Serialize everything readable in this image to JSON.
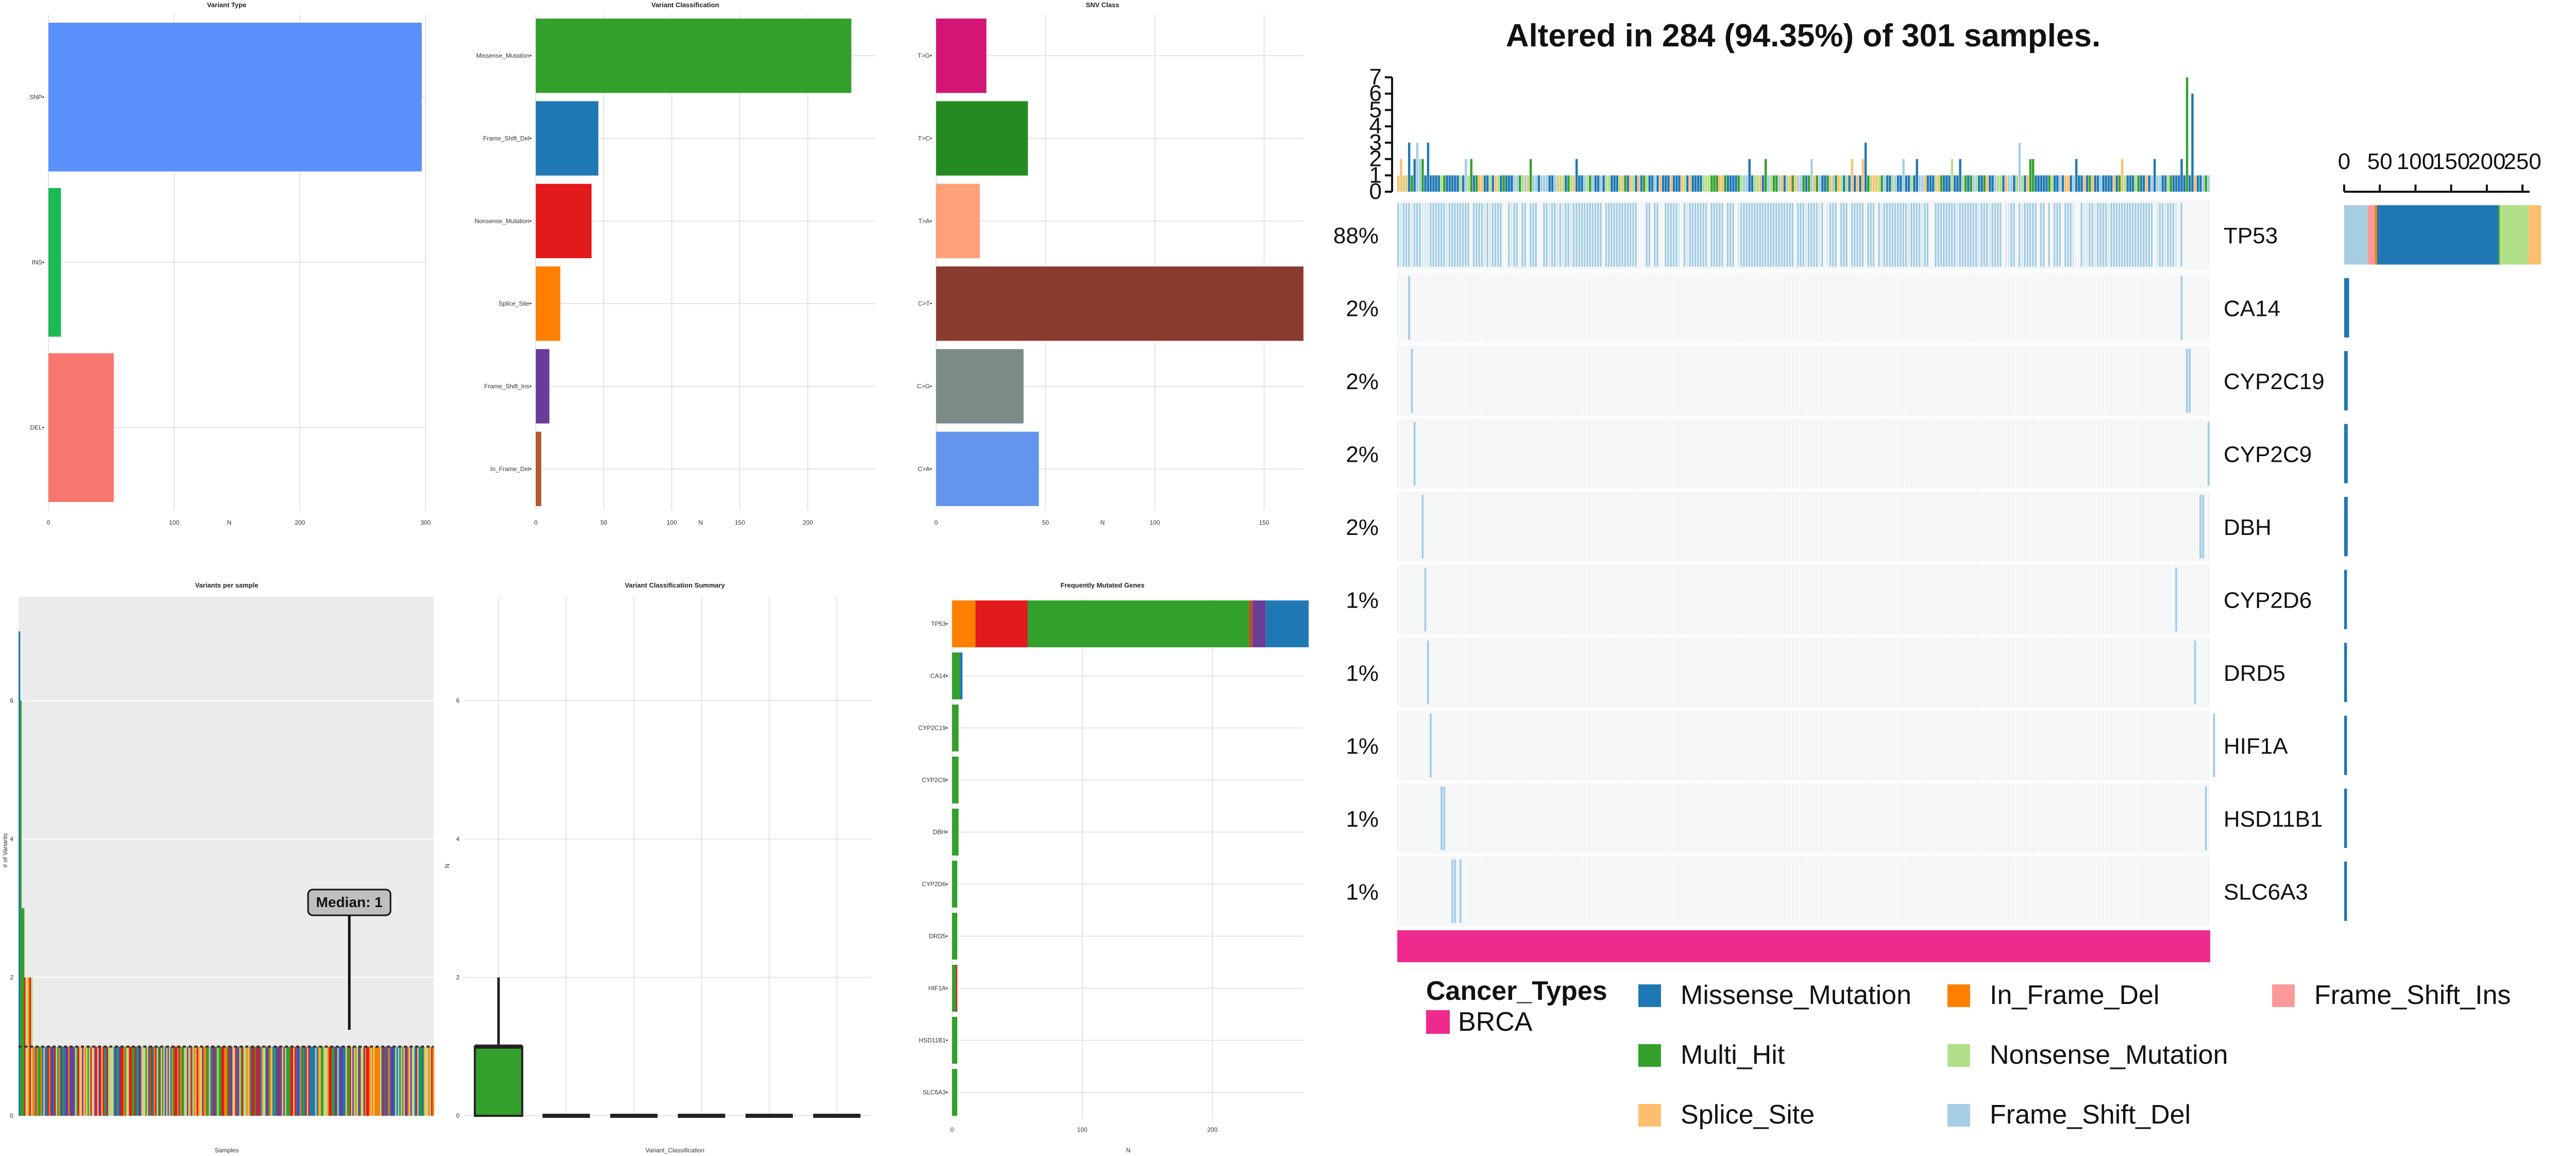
{
  "colors": {
    "Missense_Mutation": "#1f78b4",
    "In_Frame_Del": "#ff7f00",
    "Frame_Shift_Ins": "#fb9a99",
    "Multi_Hit": "#33a02c",
    "Nonsense_Mutation": "#b2df8a",
    "Splice_Site": "#fdbf6f",
    "Frame_Shift_Del": "#a6cee3",
    "BRCA": "#ee2a8d",
    "vc_Missense_Mutation": "#33a02c",
    "vc_Frame_Shift_Del": "#1f78b4",
    "vc_Nonsense_Mutation": "#e31a1c",
    "vc_Splice_Site": "#ff7f00",
    "vc_Frame_Shift_Ins": "#6a3d9a",
    "vc_In_Frame_Del": "#b15928"
  },
  "chart_data": [
    {
      "type": "bar",
      "title": "Variant Type",
      "xlabel": "N",
      "categories": [
        "SNP",
        "INS",
        "DEL"
      ],
      "values": [
        297,
        10,
        52
      ],
      "bar_colors": [
        "#5b8ff9",
        "#1db954",
        "#f8766d"
      ],
      "xlim": [
        0,
        300
      ],
      "xticks": [
        0,
        100,
        200,
        300
      ],
      "grid": true
    },
    {
      "type": "bar",
      "title": "Variant Classification",
      "xlabel": "N",
      "categories": [
        "Missense_Mutation",
        "Frame_Shift_Del",
        "Nonsense_Mutation",
        "Splice_Site",
        "Frame_Shift_Ins",
        "In_Frame_Del"
      ],
      "values": [
        232,
        46,
        41,
        18,
        10,
        4
      ],
      "xlim": [
        0,
        250
      ],
      "xticks": [
        0,
        50,
        100,
        150,
        200
      ],
      "grid": true
    },
    {
      "type": "bar",
      "title": "SNV Class",
      "xlabel": "N",
      "categories": [
        "T>G",
        "T>C",
        "T>A",
        "C>T",
        "C>G",
        "C>A"
      ],
      "values": [
        23,
        42,
        20,
        168,
        40,
        47
      ],
      "bar_colors": [
        "#d31576",
        "#238b22",
        "#ffa07a",
        "#8b3a2f",
        "#7b8b88",
        "#6495ed"
      ],
      "xlim": [
        0,
        168
      ],
      "xticks": [
        0,
        50,
        100,
        150
      ],
      "grid": true
    },
    {
      "type": "bar",
      "title": "Variants per sample",
      "xlabel": "Samples",
      "ylabel": "# of Variants",
      "ylim": [
        0,
        7.5
      ],
      "yticks": [
        0,
        2,
        4,
        6
      ],
      "median_label": "Median: 1",
      "median": 1,
      "grid": true
    },
    {
      "type": "box",
      "title": "Variant Classification Summary",
      "xlabel": "Variant_Classification",
      "ylabel": "N",
      "ylim": [
        0,
        7.5
      ],
      "yticks": [
        0,
        2,
        4,
        6
      ],
      "boxes": [
        {
          "min": 0,
          "q1": 0,
          "median": 1,
          "q3": 1,
          "max": 2,
          "color": "#33a02c"
        },
        {
          "min": 0,
          "q1": 0,
          "median": 0,
          "q3": 0,
          "max": 0
        },
        {
          "min": 0,
          "q1": 0,
          "median": 0,
          "q3": 0,
          "max": 0
        },
        {
          "min": 0,
          "q1": 0,
          "median": 0,
          "q3": 0,
          "max": 0
        },
        {
          "min": 0,
          "q1": 0,
          "median": 0,
          "q3": 0,
          "max": 0
        },
        {
          "min": 0,
          "q1": 0,
          "median": 0,
          "q3": 0,
          "max": 0
        }
      ],
      "grid": true
    },
    {
      "type": "bar",
      "title": "Frequently Mutated Genes",
      "xlabel": "N",
      "categories": [
        "TP53",
        "CA14",
        "CYP2C19",
        "CYP2C9",
        "DBH",
        "CYP2D6",
        "DRD5",
        "HIF1A",
        "HSD11B1",
        "SLC6A3"
      ],
      "stacks": [
        [
          {
            "k": "vc_Splice_Site",
            "v": 18
          },
          {
            "k": "vc_Nonsense_Mutation",
            "v": 40
          },
          {
            "k": "vc_Missense_Mutation",
            "v": 170
          },
          {
            "k": "vc_In_Frame_Del",
            "v": 3
          },
          {
            "k": "vc_Frame_Shift_Ins",
            "v": 10
          },
          {
            "k": "vc_Frame_Shift_Del",
            "v": 33
          }
        ],
        [
          {
            "k": "vc_Missense_Mutation",
            "v": 6
          },
          {
            "k": "vc_Frame_Shift_Del",
            "v": 2
          }
        ],
        [
          {
            "k": "vc_Missense_Mutation",
            "v": 5
          }
        ],
        [
          {
            "k": "vc_Missense_Mutation",
            "v": 5
          }
        ],
        [
          {
            "k": "vc_Missense_Mutation",
            "v": 5
          }
        ],
        [
          {
            "k": "vc_Missense_Mutation",
            "v": 4
          }
        ],
        [
          {
            "k": "vc_Missense_Mutation",
            "v": 4
          }
        ],
        [
          {
            "k": "vc_Missense_Mutation",
            "v": 3
          },
          {
            "k": "vc_Nonsense_Mutation",
            "v": 1
          }
        ],
        [
          {
            "k": "vc_Missense_Mutation",
            "v": 4
          }
        ],
        [
          {
            "k": "vc_Missense_Mutation",
            "v": 4
          }
        ]
      ],
      "xlim": [
        0,
        270
      ],
      "xticks": [
        0,
        100,
        200
      ],
      "grid": true
    },
    {
      "type": "heatmap",
      "title": "Altered in 284 (94.35%) of 301 samples.",
      "genes": [
        "TP53",
        "CA14",
        "CYP2C19",
        "CYP2C9",
        "DBH",
        "CYP2D6",
        "DRD5",
        "HIF1A",
        "HSD11B1",
        "SLC6A3"
      ],
      "percentages": [
        "88%",
        "2%",
        "2%",
        "2%",
        "2%",
        "1%",
        "1%",
        "1%",
        "1%",
        "1%"
      ],
      "n_samples": 301,
      "tmb_ylim": [
        0,
        7
      ],
      "tmb_yticks": [
        0,
        1,
        2,
        3,
        4,
        5,
        6,
        7
      ],
      "gene_bar_xlim": [
        0,
        260
      ],
      "gene_bar_xticks": [
        0,
        50,
        100,
        150,
        200,
        250
      ],
      "gene_bars": [
        [
          {
            "k": "Frame_Shift_Del",
            "v": 33
          },
          {
            "k": "Frame_Shift_Ins",
            "v": 10
          },
          {
            "k": "In_Frame_Del",
            "v": 3
          },
          {
            "k": "Missense_Mutation",
            "v": 170
          },
          {
            "k": "Multi_Hit",
            "v": 2
          },
          {
            "k": "Nonsense_Mutation",
            "v": 40
          },
          {
            "k": "Splice_Site",
            "v": 18
          }
        ],
        [
          {
            "k": "Missense_Mutation",
            "v": 7
          }
        ],
        [
          {
            "k": "Missense_Mutation",
            "v": 5
          }
        ],
        [
          {
            "k": "Missense_Mutation",
            "v": 5
          }
        ],
        [
          {
            "k": "Missense_Mutation",
            "v": 5
          }
        ],
        [
          {
            "k": "Missense_Mutation",
            "v": 4
          }
        ],
        [
          {
            "k": "Missense_Mutation",
            "v": 4
          }
        ],
        [
          {
            "k": "Missense_Mutation",
            "v": 4
          }
        ],
        [
          {
            "k": "Missense_Mutation",
            "v": 4
          }
        ],
        [
          {
            "k": "Missense_Mutation",
            "v": 4
          }
        ]
      ]
    }
  ],
  "legend": {
    "annotation_title": "Cancer_Types",
    "annotation_items": [
      {
        "label": "BRCA",
        "color": "#ee2a8d"
      }
    ],
    "items": [
      {
        "label": "Missense_Mutation",
        "color": "#1f78b4"
      },
      {
        "label": "In_Frame_Del",
        "color": "#ff7f00"
      },
      {
        "label": "Frame_Shift_Ins",
        "color": "#fb9a99"
      },
      {
        "label": "Multi_Hit",
        "color": "#33a02c"
      },
      {
        "label": "Nonsense_Mutation",
        "color": "#b2df8a"
      },
      {
        "label": "Splice_Site",
        "color": "#fdbf6f"
      },
      {
        "label": "Frame_Shift_Del",
        "color": "#a6cee3"
      }
    ]
  }
}
